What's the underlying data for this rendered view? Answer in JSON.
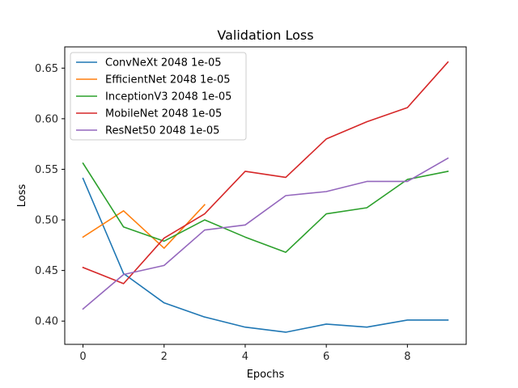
{
  "chart_data": {
    "type": "line",
    "title": "Validation Loss",
    "xlabel": "Epochs",
    "ylabel": "Loss",
    "xlim": [
      -0.45,
      9.45
    ],
    "ylim": [
      0.377,
      0.671
    ],
    "xticks": [
      0,
      2,
      4,
      6,
      8
    ],
    "yticks": [
      0.4,
      0.45,
      0.5,
      0.55,
      0.6,
      0.65
    ],
    "ytick_labels": [
      "0.40",
      "0.45",
      "0.50",
      "0.55",
      "0.60",
      "0.65"
    ],
    "grid": false,
    "legend_position": "top-left",
    "series": [
      {
        "name": "ConvNeXt 2048 1e-05",
        "color": "#1f77b4",
        "x": [
          0,
          1,
          2,
          3,
          4,
          5,
          6,
          7,
          8,
          9
        ],
        "values": [
          0.541,
          0.447,
          0.418,
          0.404,
          0.394,
          0.389,
          0.397,
          0.394,
          0.401,
          0.401
        ]
      },
      {
        "name": "EfficientNet 2048 1e-05",
        "color": "#ff7f0e",
        "x": [
          0,
          1,
          2,
          3
        ],
        "values": [
          0.483,
          0.509,
          0.472,
          0.515
        ]
      },
      {
        "name": "InceptionV3 2048 1e-05",
        "color": "#2ca02c",
        "x": [
          0,
          1,
          2,
          3,
          4,
          5,
          6,
          7,
          8,
          9
        ],
        "values": [
          0.556,
          0.493,
          0.479,
          0.5,
          0.483,
          0.468,
          0.506,
          0.512,
          0.54,
          0.548
        ]
      },
      {
        "name": "MobileNet 2048 1e-05",
        "color": "#d62728",
        "x": [
          0,
          1,
          2,
          3,
          4,
          5,
          6,
          7,
          8,
          9
        ],
        "values": [
          0.453,
          0.437,
          0.482,
          0.506,
          0.548,
          0.542,
          0.58,
          0.597,
          0.611,
          0.656
        ]
      },
      {
        "name": "ResNet50 2048 1e-05",
        "color": "#9467bd",
        "x": [
          0,
          1,
          2,
          3,
          4,
          5,
          6,
          7,
          8,
          9
        ],
        "values": [
          0.412,
          0.446,
          0.455,
          0.49,
          0.495,
          0.524,
          0.528,
          0.538,
          0.538,
          0.561
        ]
      }
    ]
  }
}
